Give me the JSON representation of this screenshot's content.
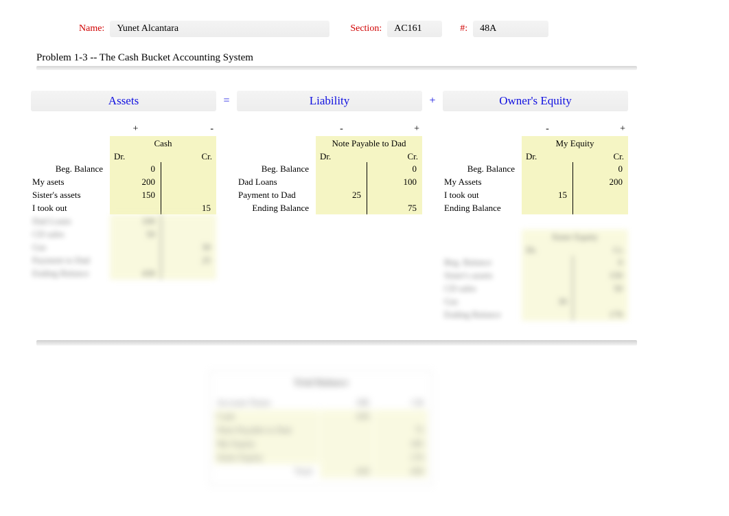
{
  "header": {
    "name_label": "Name:",
    "name_value": "Yunet Alcantara",
    "section_label": "Section:",
    "section_value": "AC161",
    "num_label": "#:",
    "num_value": "48A"
  },
  "problem_title": "Problem 1-3 -- The Cash Bucket Accounting System",
  "equation": {
    "assets_label": "Assets",
    "liability_label": "Liability",
    "equity_label": "Owner's Equity",
    "equals": "=",
    "plus": "+"
  },
  "signs": {
    "plus": "+",
    "minus": "-"
  },
  "drcr": {
    "dr": "Dr.",
    "cr": "Cr."
  },
  "assets": {
    "title": "Cash",
    "rows": [
      {
        "label": "Beg. Balance",
        "align": "right",
        "dr": "0",
        "cr": ""
      },
      {
        "label": "My asets",
        "align": "left",
        "dr": "200",
        "cr": ""
      },
      {
        "label": "Sister's assets",
        "align": "left",
        "dr": "150",
        "cr": ""
      },
      {
        "label": "I took out",
        "align": "left",
        "dr": "",
        "cr": "15"
      }
    ],
    "blurred_rows": [
      {
        "label": "Dad Loans",
        "dr": "100",
        "cr": ""
      },
      {
        "label": "CD sales",
        "dr": "50",
        "cr": ""
      },
      {
        "label": "Gas",
        "dr": "",
        "cr": "30"
      },
      {
        "label": "Payment to Dad",
        "dr": "",
        "cr": "25"
      },
      {
        "label": "",
        "dr": "",
        "cr": ""
      },
      {
        "label": "",
        "dr": "",
        "cr": ""
      },
      {
        "label": "Ending Balance",
        "dr": "430",
        "cr": ""
      }
    ]
  },
  "liability": {
    "title": "Note Payable to Dad",
    "rows": [
      {
        "label": "Beg. Balance",
        "align": "right",
        "dr": "",
        "cr": "0"
      },
      {
        "label": "Dad Loans",
        "align": "left",
        "dr": "",
        "cr": "100"
      },
      {
        "label": "Payment to Dad",
        "align": "left",
        "dr": "25",
        "cr": ""
      },
      {
        "label": "Ending Balance",
        "align": "right",
        "dr": "",
        "cr": "75"
      }
    ]
  },
  "equity": {
    "title": "My Equity",
    "rows": [
      {
        "label": "Beg. Balance",
        "align": "right",
        "dr": "",
        "cr": "0"
      },
      {
        "label": "My Assets",
        "align": "left",
        "dr": "",
        "cr": "200"
      },
      {
        "label": "I took out",
        "align": "left",
        "dr": "15",
        "cr": ""
      },
      {
        "label": "Ending Balance",
        "align": "left",
        "dr": "",
        "cr": ""
      }
    ],
    "second": {
      "title": "Sister Equity",
      "rows": [
        {
          "label": "Beg. Balance",
          "dr": "",
          "cr": "0"
        },
        {
          "label": "Sister's assets",
          "dr": "",
          "cr": "150"
        },
        {
          "label": "CD sales",
          "dr": "",
          "cr": "50"
        },
        {
          "label": "Gas",
          "dr": "30",
          "cr": ""
        },
        {
          "label": "Ending Balance",
          "dr": "",
          "cr": "170"
        }
      ]
    }
  },
  "trial_balance": {
    "title": "Trial Balance",
    "head": {
      "c1": "Account Name",
      "c2": "DR",
      "c3": "CR"
    },
    "rows": [
      {
        "c1": "Cash",
        "c2": "430",
        "c3": ""
      },
      {
        "c1": "Note Payable to Dad",
        "c2": "",
        "c3": "75"
      },
      {
        "c1": "My Equity",
        "c2": "",
        "c3": "185"
      },
      {
        "c1": "Sister Equity",
        "c2": "",
        "c3": "170"
      }
    ],
    "total": {
      "c1": "Total",
      "c2": "430",
      "c3": "430"
    }
  },
  "colors": {
    "ledger_bg": "#f5f5c4",
    "red": "#d00000",
    "blue": "#1010e0"
  }
}
